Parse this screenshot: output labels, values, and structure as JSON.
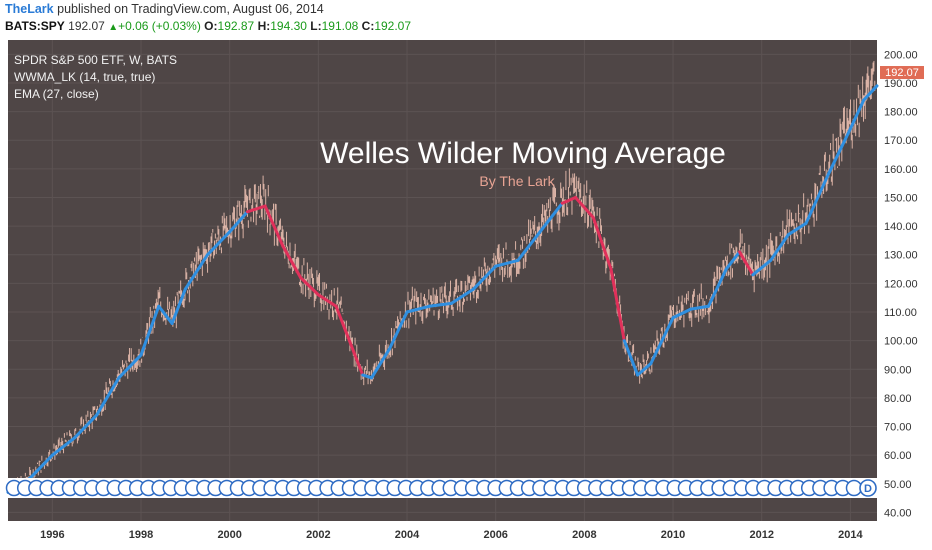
{
  "header": {
    "author": "TheLark",
    "published_text": "published on TradingView.com, August 06, 2014",
    "symbol": "BATS:SPY",
    "last": "192.07",
    "change": "+0.06 (+0.03%)",
    "o_label": "O:",
    "o_value": "192.87",
    "h_label": "H:",
    "h_value": "194.30",
    "l_label": "L:",
    "l_value": "191.08",
    "c_label": "C:",
    "c_value": "192.07"
  },
  "legend": {
    "series_title": "SPDR S&P 500 ETF, W, BATS",
    "indicator_1": "WWMA_LK (14, true, true)",
    "indicator_2": "EMA (27, close)"
  },
  "overlay": {
    "title": "Welles Wilder Moving Average",
    "subtitle": "By The Lark"
  },
  "price_tag": "192.07",
  "event_marker_letter": "D",
  "colors": {
    "background": "#4f4646",
    "candle": "#f2c6b6",
    "ma_up": "#2f8fe0",
    "ma_down": "#e0305a",
    "price_tag": "#e06c55",
    "axis_text": "#333333"
  },
  "chart_data": {
    "type": "line",
    "title": "",
    "xlabel": "",
    "ylabel": "",
    "xlim": [
      1995.0,
      2014.6
    ],
    "ylim": [
      37,
      205
    ],
    "x_ticks": [
      "1996",
      "1998",
      "2000",
      "2002",
      "2004",
      "2006",
      "2008",
      "2010",
      "2012",
      "2014"
    ],
    "x_tick_values": [
      1996,
      1998,
      2000,
      2002,
      2004,
      2006,
      2008,
      2010,
      2012,
      2014
    ],
    "y_ticks": [
      "40.00",
      "50.00",
      "60.00",
      "70.00",
      "80.00",
      "90.00",
      "100.00",
      "110.00",
      "120.00",
      "130.00",
      "140.00",
      "150.00",
      "160.00",
      "170.00",
      "180.00",
      "190.00",
      "200.00"
    ],
    "y_tick_values": [
      40,
      50,
      60,
      70,
      80,
      90,
      100,
      110,
      120,
      130,
      140,
      150,
      160,
      170,
      180,
      190,
      200
    ],
    "last_value": 192.07,
    "series": [
      {
        "name": "WWMA_LK (14, true, true)",
        "x": [
          1995.0,
          1995.5,
          1996.0,
          1996.5,
          1997.0,
          1997.5,
          1998.0,
          1998.4,
          1998.7,
          1999.0,
          1999.5,
          2000.0,
          2000.4,
          2000.8,
          2001.2,
          2001.6,
          2002.0,
          2002.4,
          2002.8,
          2003.0,
          2003.2,
          2003.6,
          2004.0,
          2004.5,
          2005.0,
          2005.5,
          2006.0,
          2006.5,
          2007.0,
          2007.5,
          2007.8,
          2008.2,
          2008.6,
          2008.9,
          2009.2,
          2009.5,
          2010.0,
          2010.4,
          2010.8,
          2011.2,
          2011.5,
          2011.8,
          2012.2,
          2012.6,
          2013.0,
          2013.5,
          2014.0,
          2014.3,
          2014.6
        ],
        "y": [
          47,
          52,
          60,
          66,
          74,
          87,
          95,
          112,
          106,
          118,
          130,
          138,
          145,
          147,
          133,
          122,
          116,
          112,
          96,
          88,
          87,
          97,
          110,
          112,
          113,
          118,
          126,
          128,
          138,
          148,
          150,
          143,
          125,
          100,
          88,
          92,
          108,
          111,
          112,
          125,
          131,
          123,
          128,
          137,
          141,
          158,
          174,
          184,
          189
        ],
        "trend": [
          "up",
          "up",
          "up",
          "up",
          "up",
          "up",
          "up",
          "up",
          "up",
          "up",
          "up",
          "up",
          "up",
          "down",
          "down",
          "down",
          "down",
          "down",
          "down",
          "down",
          "up",
          "up",
          "up",
          "up",
          "up",
          "up",
          "up",
          "up",
          "up",
          "up",
          "down",
          "down",
          "down",
          "down",
          "up",
          "up",
          "up",
          "up",
          "up",
          "up",
          "up",
          "down",
          "up",
          "up",
          "up",
          "up",
          "up",
          "up",
          "up"
        ]
      }
    ]
  }
}
